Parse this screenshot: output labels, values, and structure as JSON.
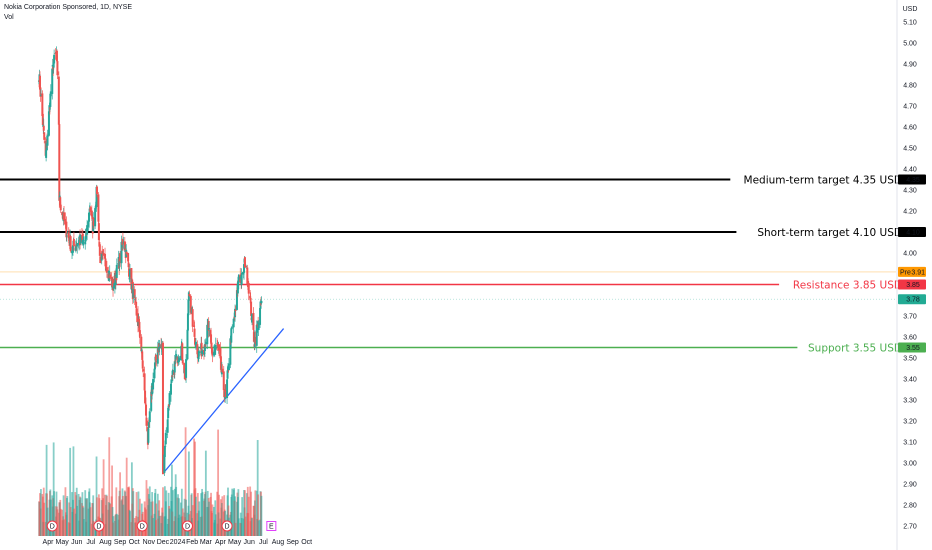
{
  "header": {
    "symbol_line": "Nokia Corporation Sponsored, 1D, NYSE",
    "indicator": "Vol"
  },
  "currency": "USD",
  "colors": {
    "up": "#26a69a",
    "down": "#ef5350",
    "target": "#000000",
    "resistance": "#f23645",
    "support": "#4caf50",
    "trendline": "#2962ff",
    "pre_badge": "#ff9800",
    "last_badge": "#22ab94"
  },
  "chart_data": {
    "type": "candlestick",
    "y_axis": {
      "min": 2.7,
      "max": 5.1,
      "step": 0.1,
      "tick_labels": [
        "5.10",
        "5.00",
        "4.90",
        "4.80",
        "4.70",
        "4.60",
        "4.50",
        "4.40",
        "4.35",
        "4.30",
        "4.20",
        "4.10",
        "4.00",
        "3.91",
        "3.85",
        "3.78",
        "3.70",
        "3.60",
        "3.55",
        "3.50",
        "3.40",
        "3.30",
        "3.20",
        "3.10",
        "3.00",
        "2.90",
        "2.80",
        "2.70"
      ]
    },
    "x_axis": {
      "labels": [
        {
          "text": "Apr",
          "date": "2023-04-01"
        },
        {
          "text": "May",
          "date": "2023-05-01"
        },
        {
          "text": "Jun",
          "date": "2023-06-01"
        },
        {
          "text": "Jul",
          "date": "2023-07-01"
        },
        {
          "text": "Aug",
          "date": "2023-08-01"
        },
        {
          "text": "Sep",
          "date": "2023-09-01"
        },
        {
          "text": "Oct",
          "date": "2023-10-01"
        },
        {
          "text": "Nov",
          "date": "2023-11-01"
        },
        {
          "text": "Dec",
          "date": "2023-12-01"
        },
        {
          "text": "2024",
          "date": "2024-01-01"
        },
        {
          "text": "Feb",
          "date": "2024-02-01"
        },
        {
          "text": "Mar",
          "date": "2024-03-01"
        },
        {
          "text": "Apr",
          "date": "2024-04-01"
        },
        {
          "text": "May",
          "date": "2024-05-01"
        },
        {
          "text": "Jun",
          "date": "2024-06-01"
        },
        {
          "text": "Jul",
          "date": "2024-07-01"
        },
        {
          "text": "Aug",
          "date": "2024-08-01"
        },
        {
          "text": "Sep",
          "date": "2024-09-01"
        },
        {
          "text": "Oct",
          "date": "2024-10-01"
        }
      ]
    },
    "price_path": [
      [
        "2023-03-13",
        4.85
      ],
      [
        "2023-03-20",
        4.65
      ],
      [
        "2023-03-27",
        4.45
      ],
      [
        "2023-04-05",
        4.72
      ],
      [
        "2023-04-12",
        4.9
      ],
      [
        "2023-04-19",
        4.95
      ],
      [
        "2023-04-24",
        4.62
      ],
      [
        "2023-04-25",
        4.26
      ],
      [
        "2023-05-08",
        4.12
      ],
      [
        "2023-05-22",
        4.02
      ],
      [
        "2023-06-05",
        4.06
      ],
      [
        "2023-06-19",
        4.05
      ],
      [
        "2023-06-29",
        4.22
      ],
      [
        "2023-07-05",
        4.12
      ],
      [
        "2023-07-14",
        4.3
      ],
      [
        "2023-07-20",
        3.98
      ],
      [
        "2023-08-02",
        3.95
      ],
      [
        "2023-08-17",
        3.84
      ],
      [
        "2023-08-31",
        3.97
      ],
      [
        "2023-09-08",
        4.07
      ],
      [
        "2023-09-20",
        3.92
      ],
      [
        "2023-10-05",
        3.72
      ],
      [
        "2023-10-13",
        3.62
      ],
      [
        "2023-10-19",
        3.46
      ],
      [
        "2023-10-30",
        3.1
      ],
      [
        "2023-11-08",
        3.37
      ],
      [
        "2023-11-20",
        3.55
      ],
      [
        "2023-11-30",
        3.55
      ],
      [
        "2023-12-01",
        2.98
      ],
      [
        "2023-12-14",
        3.3
      ],
      [
        "2023-12-27",
        3.48
      ],
      [
        "2024-01-09",
        3.55
      ],
      [
        "2024-01-18",
        3.4
      ],
      [
        "2024-01-25",
        3.82
      ],
      [
        "2024-02-06",
        3.6
      ],
      [
        "2024-02-14",
        3.52
      ],
      [
        "2024-02-26",
        3.55
      ],
      [
        "2024-03-06",
        3.65
      ],
      [
        "2024-03-14",
        3.52
      ],
      [
        "2024-03-26",
        3.56
      ],
      [
        "2024-04-05",
        3.4
      ],
      [
        "2024-04-12",
        3.3
      ],
      [
        "2024-04-23",
        3.6
      ],
      [
        "2024-05-03",
        3.72
      ],
      [
        "2024-05-10",
        3.9
      ],
      [
        "2024-05-16",
        3.87
      ],
      [
        "2024-05-23",
        3.96
      ],
      [
        "2024-05-31",
        3.84
      ],
      [
        "2024-06-06",
        3.7
      ],
      [
        "2024-06-12",
        3.58
      ],
      [
        "2024-06-21",
        3.68
      ],
      [
        "2024-06-28",
        3.78
      ]
    ],
    "volume_scale_note": "",
    "levels": [
      {
        "name": "medium_target",
        "label": "Medium-term target 4.35 USD",
        "value": 4.35,
        "badge": "4.35",
        "color": "#000000"
      },
      {
        "name": "short_target",
        "label": "Short-term target 4.10 USD",
        "value": 4.1,
        "badge": "4.10",
        "color": "#000000"
      },
      {
        "name": "resistance",
        "label": "Resistance 3.85 USD",
        "value": 3.85,
        "badge": "3.85",
        "color": "#f23645"
      },
      {
        "name": "support",
        "label": "Support 3.55 USD",
        "value": 3.55,
        "badge": "3.55",
        "color": "#4caf50"
      }
    ],
    "price_badges": [
      {
        "text": "Pre",
        "value": "3.91",
        "color": "#ff9800"
      },
      {
        "text": "",
        "value": "3.78",
        "color": "#22ab94"
      }
    ],
    "trendline": {
      "start": [
        "2023-12-01",
        2.95
      ],
      "end": [
        "2024-08-13",
        3.64
      ]
    },
    "event_markers": [
      {
        "text": "D",
        "date": "2023-04-10",
        "kind": "dividend"
      },
      {
        "text": "D",
        "date": "2023-07-18",
        "kind": "dividend"
      },
      {
        "text": "D",
        "date": "2023-10-18",
        "kind": "dividend"
      },
      {
        "text": "D",
        "date": "2024-01-22",
        "kind": "dividend"
      },
      {
        "text": "D",
        "date": "2024-04-15",
        "kind": "dividend"
      },
      {
        "text": "E",
        "date": "2024-07-18",
        "kind": "earnings"
      }
    ]
  }
}
